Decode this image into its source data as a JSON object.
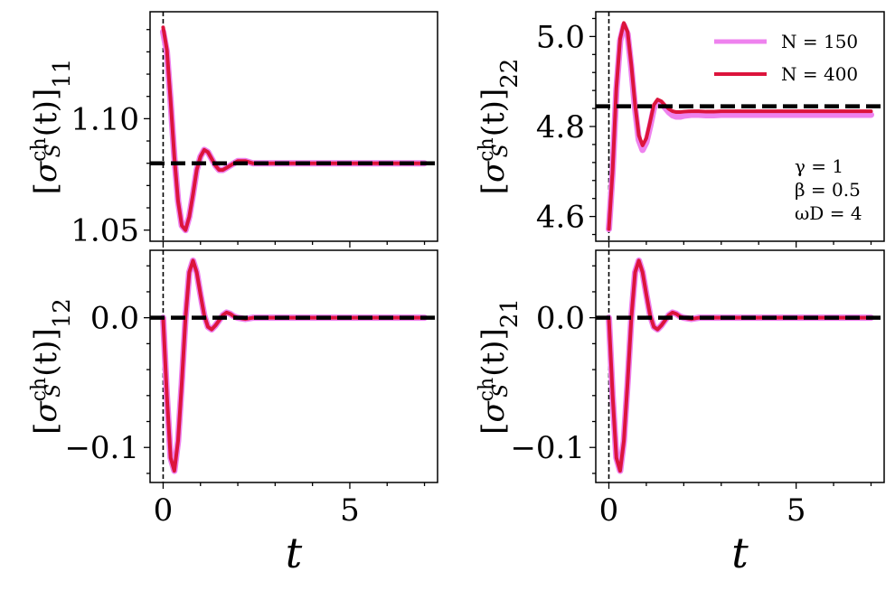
{
  "colors": {
    "N150": "#ee82ee",
    "N400": "#dc143c",
    "reference": "#000000",
    "marker_line": "#000000"
  },
  "chart_data": [
    {
      "type": "line",
      "panel": "top-left",
      "ylabel": {
        "prefix": "[",
        "sigma": "σ",
        "sup": "ch",
        "sub": "S",
        "arg": "(t)",
        "close": "]",
        "index": "11"
      },
      "xlabel": "",
      "xlim": [
        -0.35,
        7.35
      ],
      "ylim": [
        1.045,
        1.148
      ],
      "xticks": [
        {
          "v": 0,
          "label": "0"
        },
        {
          "v": 5,
          "label": "5"
        }
      ],
      "yticks": [
        {
          "v": 1.05,
          "label": "1.05"
        },
        {
          "v": 1.1,
          "label": "1.10"
        }
      ],
      "show_xtick_labels": false,
      "reference_y": 1.08,
      "vline_x": 0,
      "series": [
        {
          "name": "N = 150",
          "color_key": "N150",
          "x": [
            0.0,
            0.1,
            0.2,
            0.3,
            0.4,
            0.5,
            0.6,
            0.7,
            0.8,
            0.9,
            1.0,
            1.1,
            1.2,
            1.3,
            1.4,
            1.5,
            1.6,
            1.7,
            1.8,
            1.9,
            2.0,
            2.2,
            2.4,
            2.6,
            2.8,
            3.0,
            3.5,
            4.0,
            5.0,
            6.0,
            7.0
          ],
          "y": [
            1.139,
            1.13,
            1.108,
            1.083,
            1.063,
            1.052,
            1.05,
            1.056,
            1.066,
            1.077,
            1.083,
            1.086,
            1.085,
            1.082,
            1.079,
            1.077,
            1.077,
            1.078,
            1.079,
            1.08,
            1.081,
            1.081,
            1.08,
            1.08,
            1.08,
            1.08,
            1.08,
            1.08,
            1.08,
            1.08,
            1.08
          ]
        },
        {
          "name": "N = 400",
          "color_key": "N400",
          "x": [
            0.0,
            0.1,
            0.2,
            0.3,
            0.4,
            0.5,
            0.6,
            0.7,
            0.8,
            0.9,
            1.0,
            1.1,
            1.2,
            1.3,
            1.4,
            1.5,
            1.6,
            1.7,
            1.8,
            1.9,
            2.0,
            2.2,
            2.4,
            2.6,
            2.8,
            3.0,
            3.5,
            4.0,
            5.0,
            6.0,
            7.0
          ],
          "y": [
            1.141,
            1.131,
            1.108,
            1.083,
            1.063,
            1.052,
            1.05,
            1.056,
            1.066,
            1.077,
            1.083,
            1.086,
            1.085,
            1.082,
            1.079,
            1.077,
            1.077,
            1.078,
            1.079,
            1.08,
            1.081,
            1.081,
            1.08,
            1.08,
            1.08,
            1.08,
            1.08,
            1.08,
            1.08,
            1.08,
            1.08
          ]
        }
      ]
    },
    {
      "type": "line",
      "panel": "top-right",
      "ylabel": {
        "prefix": "[",
        "sigma": "σ",
        "sup": "ch",
        "sub": "S",
        "arg": "(t)",
        "close": "]",
        "index": "22"
      },
      "xlabel": "",
      "xlim": [
        -0.35,
        7.35
      ],
      "ylim": [
        4.545,
        5.055
      ],
      "xticks": [
        {
          "v": 0,
          "label": "0"
        },
        {
          "v": 5,
          "label": "5"
        }
      ],
      "yticks": [
        {
          "v": 4.6,
          "label": "4.6"
        },
        {
          "v": 4.8,
          "label": "4.8"
        },
        {
          "v": 5.0,
          "label": "5.0"
        }
      ],
      "show_xtick_labels": false,
      "reference_y": 4.845,
      "vline_x": 0,
      "legend": {
        "placement": "top-right",
        "entries": [
          {
            "label": "N = 150",
            "color_key": "N150"
          },
          {
            "label": "N = 400",
            "color_key": "N400"
          }
        ]
      },
      "annotations": [
        "γ = 1",
        "β = 0.5",
        "ωD = 4"
      ],
      "series": [
        {
          "name": "N = 150",
          "color_key": "N150",
          "x": [
            0.0,
            0.1,
            0.2,
            0.3,
            0.4,
            0.5,
            0.6,
            0.7,
            0.8,
            0.9,
            1.0,
            1.1,
            1.2,
            1.3,
            1.4,
            1.5,
            1.6,
            1.7,
            1.8,
            1.9,
            2.0,
            2.2,
            2.4,
            2.6,
            2.8,
            3.0,
            3.5,
            4.0,
            5.0,
            6.0,
            7.0
          ],
          "y": [
            4.572,
            4.7,
            4.88,
            4.99,
            5.025,
            5.005,
            4.93,
            4.84,
            4.77,
            4.748,
            4.765,
            4.8,
            4.84,
            4.855,
            4.852,
            4.842,
            4.832,
            4.825,
            4.822,
            4.822,
            4.824,
            4.826,
            4.826,
            4.825,
            4.825,
            4.826,
            4.826,
            4.826,
            4.826,
            4.826,
            4.826
          ]
        },
        {
          "name": "N = 400",
          "color_key": "N400",
          "x": [
            0.0,
            0.1,
            0.2,
            0.3,
            0.4,
            0.5,
            0.6,
            0.7,
            0.8,
            0.9,
            1.0,
            1.1,
            1.2,
            1.3,
            1.4,
            1.5,
            1.6,
            1.7,
            1.8,
            1.9,
            2.0,
            2.2,
            2.4,
            2.6,
            2.8,
            3.0,
            3.5,
            4.0,
            5.0,
            6.0,
            7.0
          ],
          "y": [
            4.572,
            4.703,
            4.885,
            4.995,
            5.03,
            5.01,
            4.936,
            4.848,
            4.78,
            4.758,
            4.774,
            4.81,
            4.848,
            4.86,
            4.856,
            4.847,
            4.839,
            4.834,
            4.832,
            4.832,
            4.833,
            4.834,
            4.834,
            4.833,
            4.833,
            4.834,
            4.834,
            4.834,
            4.834,
            4.834,
            4.834
          ]
        }
      ]
    },
    {
      "type": "line",
      "panel": "bottom-left",
      "ylabel": {
        "prefix": "[",
        "sigma": "σ",
        "sup": "ch",
        "sub": "S",
        "arg": "(t)",
        "close": "]",
        "index": "12"
      },
      "xlabel": "t",
      "xlim": [
        -0.35,
        7.35
      ],
      "ylim": [
        -0.127,
        0.052
      ],
      "xticks": [
        {
          "v": 0,
          "label": "0"
        },
        {
          "v": 5,
          "label": "5"
        }
      ],
      "yticks": [
        {
          "v": 0.0,
          "label": "0.0"
        },
        {
          "v": -0.1,
          "label": "−0.1"
        }
      ],
      "show_xtick_labels": true,
      "reference_y": 0.0,
      "vline_x": 0,
      "series": [
        {
          "name": "N = 150",
          "color_key": "N150",
          "x": [
            0.0,
            0.1,
            0.2,
            0.3,
            0.4,
            0.5,
            0.6,
            0.7,
            0.8,
            0.9,
            1.0,
            1.1,
            1.2,
            1.3,
            1.4,
            1.5,
            1.6,
            1.7,
            1.8,
            1.9,
            2.0,
            2.2,
            2.4,
            2.6,
            2.8,
            3.0,
            3.5,
            4.0,
            5.0,
            6.0,
            7.0
          ],
          "y": [
            0.0,
            -0.06,
            -0.108,
            -0.118,
            -0.095,
            -0.05,
            0.0,
            0.035,
            0.044,
            0.035,
            0.018,
            0.002,
            -0.007,
            -0.009,
            -0.006,
            -0.002,
            0.002,
            0.004,
            0.003,
            0.001,
            0.0,
            -0.001,
            0.0,
            0.0,
            0.0,
            0.0,
            0.0,
            0.0,
            0.0,
            0.0,
            0.0
          ]
        },
        {
          "name": "N = 400",
          "color_key": "N400",
          "x": [
            0.0,
            0.1,
            0.2,
            0.3,
            0.4,
            0.5,
            0.6,
            0.7,
            0.8,
            0.9,
            1.0,
            1.1,
            1.2,
            1.3,
            1.4,
            1.5,
            1.6,
            1.7,
            1.8,
            1.9,
            2.0,
            2.2,
            2.4,
            2.6,
            2.8,
            3.0,
            3.5,
            4.0,
            5.0,
            6.0,
            7.0
          ],
          "y": [
            0.0,
            -0.06,
            -0.108,
            -0.118,
            -0.095,
            -0.05,
            0.0,
            0.035,
            0.044,
            0.035,
            0.018,
            0.002,
            -0.007,
            -0.009,
            -0.006,
            -0.002,
            0.002,
            0.004,
            0.003,
            0.001,
            0.0,
            -0.001,
            0.0,
            0.0,
            0.0,
            0.0,
            0.0,
            0.0,
            0.0,
            0.0,
            0.0
          ]
        }
      ]
    },
    {
      "type": "line",
      "panel": "bottom-right",
      "ylabel": {
        "prefix": "[",
        "sigma": "σ",
        "sup": "ch",
        "sub": "S",
        "arg": "(t)",
        "close": "]",
        "index": "21"
      },
      "xlabel": "t",
      "xlim": [
        -0.35,
        7.35
      ],
      "ylim": [
        -0.127,
        0.052
      ],
      "xticks": [
        {
          "v": 0,
          "label": "0"
        },
        {
          "v": 5,
          "label": "5"
        }
      ],
      "yticks": [
        {
          "v": 0.0,
          "label": "0.0"
        },
        {
          "v": -0.1,
          "label": "−0.1"
        }
      ],
      "show_xtick_labels": true,
      "reference_y": 0.0,
      "vline_x": 0,
      "series": [
        {
          "name": "N = 150",
          "color_key": "N150",
          "x": [
            0.0,
            0.1,
            0.2,
            0.3,
            0.4,
            0.5,
            0.6,
            0.7,
            0.8,
            0.9,
            1.0,
            1.1,
            1.2,
            1.3,
            1.4,
            1.5,
            1.6,
            1.7,
            1.8,
            1.9,
            2.0,
            2.2,
            2.4,
            2.6,
            2.8,
            3.0,
            3.5,
            4.0,
            5.0,
            6.0,
            7.0
          ],
          "y": [
            0.0,
            -0.06,
            -0.108,
            -0.118,
            -0.095,
            -0.05,
            0.0,
            0.035,
            0.044,
            0.035,
            0.018,
            0.002,
            -0.007,
            -0.009,
            -0.006,
            -0.002,
            0.002,
            0.004,
            0.003,
            0.001,
            0.0,
            -0.001,
            0.0,
            0.0,
            0.0,
            0.0,
            0.0,
            0.0,
            0.0,
            0.0,
            0.0
          ]
        },
        {
          "name": "N = 400",
          "color_key": "N400",
          "x": [
            0.0,
            0.1,
            0.2,
            0.3,
            0.4,
            0.5,
            0.6,
            0.7,
            0.8,
            0.9,
            1.0,
            1.1,
            1.2,
            1.3,
            1.4,
            1.5,
            1.6,
            1.7,
            1.8,
            1.9,
            2.0,
            2.2,
            2.4,
            2.6,
            2.8,
            3.0,
            3.5,
            4.0,
            5.0,
            6.0,
            7.0
          ],
          "y": [
            0.0,
            -0.06,
            -0.108,
            -0.118,
            -0.095,
            -0.05,
            0.0,
            0.035,
            0.044,
            0.035,
            0.018,
            0.002,
            -0.007,
            -0.009,
            -0.006,
            -0.002,
            0.002,
            0.004,
            0.003,
            0.001,
            0.0,
            -0.001,
            0.0,
            0.0,
            0.0,
            0.0,
            0.0,
            0.0,
            0.0,
            0.0,
            0.0
          ]
        }
      ]
    }
  ]
}
